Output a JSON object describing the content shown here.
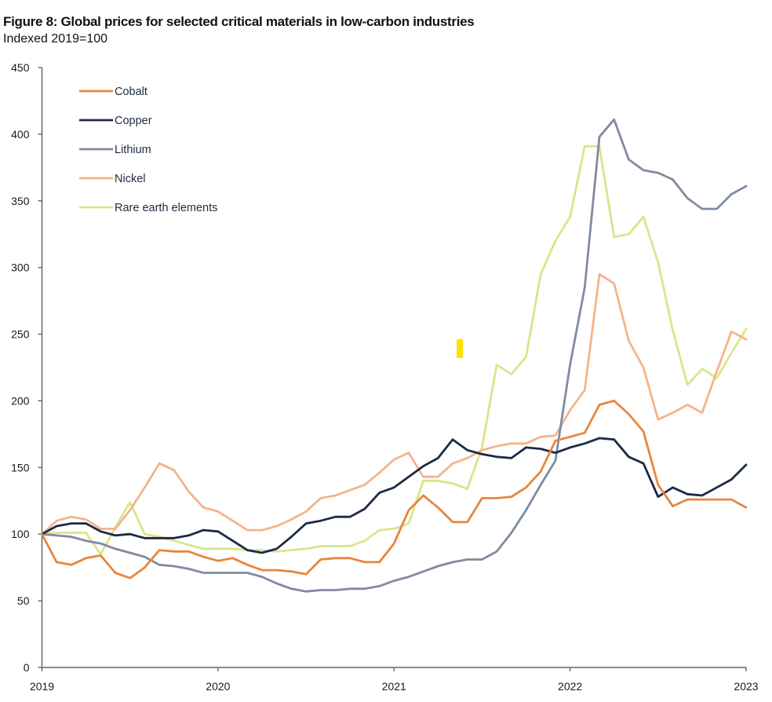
{
  "chart_data": {
    "type": "line",
    "title": "Figure 8: Global prices for selected critical materials in low-carbon industries",
    "subtitle": "Indexed 2019=100",
    "xlabel": "",
    "ylabel": "",
    "x_start": 2019,
    "x_end": 2023,
    "x_step_months": 1,
    "x_ticks": [
      "2019",
      "2020",
      "2021",
      "2022",
      "2023"
    ],
    "y_ticks": [
      0,
      50,
      100,
      150,
      200,
      250,
      300,
      350,
      400,
      450
    ],
    "ylim": [
      0,
      450
    ],
    "grid": false,
    "legend_position": "top-left",
    "series": [
      {
        "name": "Cobalt",
        "color": "#E8853D",
        "values": [
          100,
          79,
          77,
          82,
          84,
          71,
          67,
          75,
          88,
          87,
          87,
          83,
          80,
          82,
          77,
          73,
          73,
          72,
          70,
          81,
          82,
          82,
          79,
          79,
          93,
          118,
          129,
          120,
          109,
          109,
          127,
          127,
          128,
          135,
          147,
          170,
          173,
          176,
          197,
          200,
          190,
          177,
          137,
          121,
          126,
          126,
          126,
          126,
          120
        ]
      },
      {
        "name": "Copper",
        "color": "#1B2A47",
        "values": [
          100,
          106,
          108,
          108,
          102,
          99,
          100,
          97,
          97,
          97,
          99,
          103,
          102,
          95,
          88,
          86,
          89,
          98,
          108,
          110,
          113,
          113,
          119,
          131,
          135,
          143,
          151,
          157,
          171,
          163,
          160,
          158,
          157,
          165,
          164,
          161,
          165,
          168,
          172,
          171,
          158,
          153,
          128,
          135,
          130,
          129,
          135,
          141,
          152
        ]
      },
      {
        "name": "Lithium",
        "color": "#7F8BA0",
        "values": [
          100,
          99,
          98,
          95,
          93,
          89,
          86,
          83,
          77,
          76,
          74,
          71,
          71,
          71,
          71,
          68,
          63,
          59,
          57,
          58,
          58,
          59,
          59,
          61,
          65,
          68,
          72,
          76,
          79,
          81,
          81,
          87,
          101,
          118,
          137,
          155,
          227,
          285,
          398,
          411,
          381,
          373,
          371,
          366,
          352,
          344,
          344,
          355,
          361
        ]
      },
      {
        "name": "Nickel",
        "color": "#F5B38A",
        "values": [
          100,
          110,
          113,
          111,
          104,
          104,
          118,
          135,
          153,
          148,
          132,
          120,
          117,
          110,
          103,
          103,
          106,
          111,
          117,
          127,
          129,
          133,
          137,
          146,
          156,
          161,
          143,
          143,
          153,
          157,
          163,
          166,
          168,
          168,
          173,
          174,
          193,
          208,
          295,
          288,
          245,
          225,
          186,
          191,
          197,
          191,
          222,
          252,
          246
        ]
      },
      {
        "name": "Rare earth elements",
        "color": "#D9E68A",
        "values": [
          100,
          101,
          101,
          101,
          85,
          105,
          124,
          100,
          98,
          95,
          92,
          89,
          89,
          89,
          88,
          88,
          87,
          88,
          89,
          91,
          91,
          91,
          95,
          103,
          104,
          108,
          140,
          140,
          138,
          134,
          165,
          227,
          220,
          233,
          295,
          320,
          338,
          391,
          391,
          323,
          325,
          338,
          304,
          253,
          212,
          224,
          217,
          236,
          254
        ]
      }
    ]
  },
  "colors": {
    "axis": "#555555",
    "marker": "#FFE100"
  }
}
